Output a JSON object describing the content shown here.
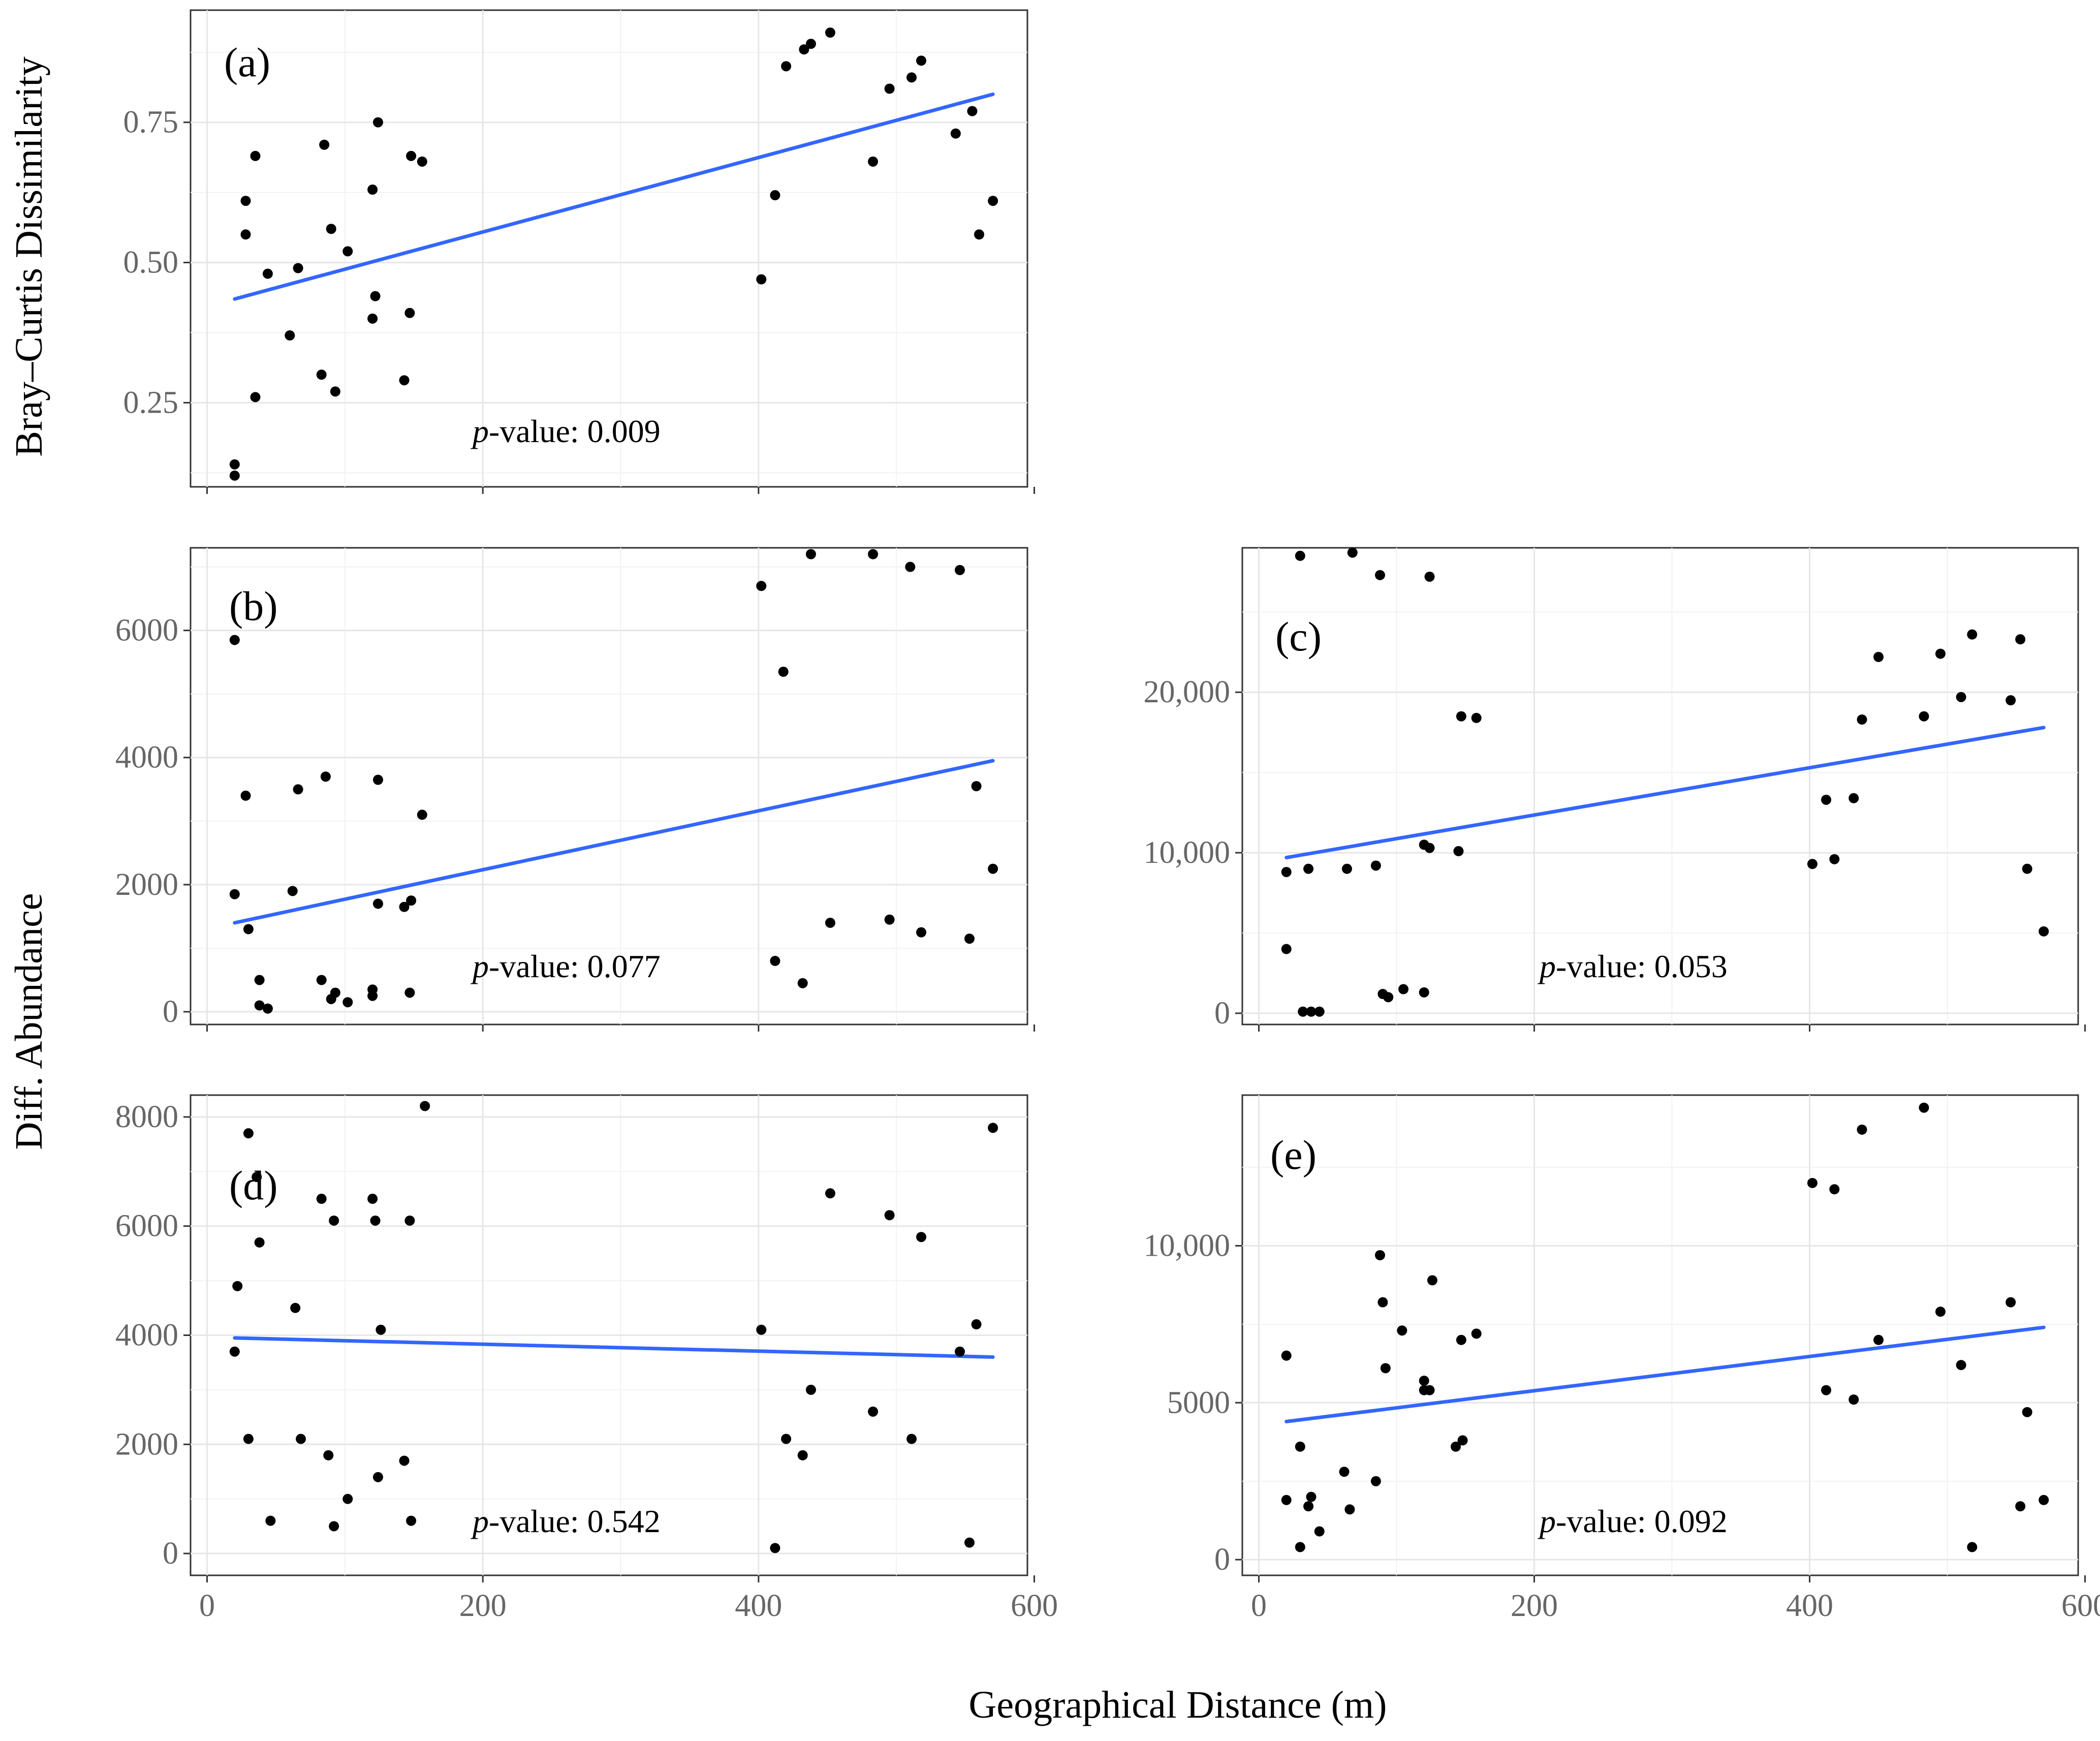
{
  "figure": {
    "xlabel": "Geographical Distance (m)",
    "ylabel_top": "Bray–Curtis Dissimilarity",
    "ylabel_bottom": "Diff. Abundance",
    "line_color": "#3366FF",
    "point_color": "#000000"
  },
  "chart_data": [
    {
      "id": "a",
      "type": "scatter",
      "panel_label": "(a)",
      "p_prefix": "p",
      "p_text": "-value: 0.009",
      "xlabel": "Geographical Distance (m)",
      "ylabel": "Bray–Curtis Dissimilarity",
      "xlim": [
        -12,
        595
      ],
      "ylim": [
        0.1,
        0.95
      ],
      "xticks": [
        0,
        200,
        400,
        600
      ],
      "xtick_labels": [
        "",
        "",
        "",
        ""
      ],
      "yticks": [
        0.25,
        0.5,
        0.75
      ],
      "ytick_labels": [
        "0.25",
        "0.50",
        "0.75"
      ],
      "trend": {
        "x0": 20,
        "y0": 0.435,
        "x1": 570,
        "y1": 0.8
      },
      "points": [
        [
          20,
          0.12
        ],
        [
          20,
          0.14
        ],
        [
          28,
          0.61
        ],
        [
          28,
          0.55
        ],
        [
          35,
          0.69
        ],
        [
          35,
          0.26
        ],
        [
          44,
          0.48
        ],
        [
          60,
          0.37
        ],
        [
          66,
          0.49
        ],
        [
          83,
          0.3
        ],
        [
          85,
          0.71
        ],
        [
          90,
          0.56
        ],
        [
          93,
          0.27
        ],
        [
          102,
          0.52
        ],
        [
          120,
          0.63
        ],
        [
          120,
          0.4
        ],
        [
          122,
          0.44
        ],
        [
          124,
          0.75
        ],
        [
          143,
          0.29
        ],
        [
          147,
          0.41
        ],
        [
          148,
          0.69
        ],
        [
          156,
          0.68
        ],
        [
          402,
          0.47
        ],
        [
          412,
          0.62
        ],
        [
          420,
          0.85
        ],
        [
          433,
          0.88
        ],
        [
          438,
          0.89
        ],
        [
          452,
          0.91
        ],
        [
          483,
          0.68
        ],
        [
          495,
          0.81
        ],
        [
          511,
          0.83
        ],
        [
          518,
          0.86
        ],
        [
          543,
          0.73
        ],
        [
          555,
          0.77
        ],
        [
          560,
          0.55
        ],
        [
          570,
          0.61
        ]
      ]
    },
    {
      "id": "b",
      "type": "scatter",
      "panel_label": "(b)",
      "p_prefix": "p",
      "p_text": "-value: 0.077",
      "xlabel": "Geographical Distance (m)",
      "ylabel": "Diff. Abundance",
      "xlim": [
        -12,
        595
      ],
      "ylim": [
        -200,
        7300
      ],
      "xticks": [
        0,
        200,
        400,
        600
      ],
      "xtick_labels": [
        "",
        "",
        "",
        ""
      ],
      "yticks": [
        0,
        2000,
        4000,
        6000
      ],
      "ytick_labels": [
        "0",
        "2000",
        "4000",
        "6000"
      ],
      "trend": {
        "x0": 20,
        "y0": 1400,
        "x1": 570,
        "y1": 3950
      },
      "points": [
        [
          20,
          5850
        ],
        [
          20,
          1850
        ],
        [
          28,
          3400
        ],
        [
          30,
          1300
        ],
        [
          38,
          500
        ],
        [
          38,
          100
        ],
        [
          44,
          50
        ],
        [
          62,
          1900
        ],
        [
          66,
          3500
        ],
        [
          83,
          500
        ],
        [
          86,
          3700
        ],
        [
          90,
          200
        ],
        [
          93,
          300
        ],
        [
          102,
          150
        ],
        [
          120,
          250
        ],
        [
          120,
          350
        ],
        [
          124,
          3650
        ],
        [
          124,
          1700
        ],
        [
          143,
          1650
        ],
        [
          147,
          300
        ],
        [
          148,
          1750
        ],
        [
          156,
          3100
        ],
        [
          402,
          6700
        ],
        [
          412,
          800
        ],
        [
          418,
          5350
        ],
        [
          432,
          450
        ],
        [
          438,
          7200
        ],
        [
          452,
          1400
        ],
        [
          483,
          7200
        ],
        [
          495,
          1450
        ],
        [
          510,
          7000
        ],
        [
          518,
          1250
        ],
        [
          546,
          6950
        ],
        [
          553,
          1150
        ],
        [
          558,
          3550
        ],
        [
          570,
          2250
        ]
      ]
    },
    {
      "id": "c",
      "type": "scatter",
      "panel_label": "(c)",
      "p_prefix": "p",
      "p_text": "-value: 0.053",
      "xlabel": "Geographical Distance (m)",
      "ylabel": "Diff. Abundance",
      "xlim": [
        -12,
        595
      ],
      "ylim": [
        -700,
        29000
      ],
      "xticks": [
        0,
        200,
        400,
        600
      ],
      "xtick_labels": [
        "",
        "",
        "",
        ""
      ],
      "yticks": [
        0,
        10000,
        20000
      ],
      "ytick_labels": [
        "0",
        "10,000",
        "20,000"
      ],
      "trend": {
        "x0": 20,
        "y0": 9700,
        "x1": 570,
        "y1": 17800
      },
      "points": [
        [
          20,
          4000
        ],
        [
          20,
          8800
        ],
        [
          30,
          28500
        ],
        [
          32,
          100
        ],
        [
          36,
          9000
        ],
        [
          38,
          100
        ],
        [
          44,
          100
        ],
        [
          64,
          9000
        ],
        [
          68,
          28700
        ],
        [
          85,
          9200
        ],
        [
          88,
          27300
        ],
        [
          90,
          1200
        ],
        [
          94,
          1000
        ],
        [
          105,
          1500
        ],
        [
          120,
          1300
        ],
        [
          120,
          10500
        ],
        [
          124,
          27200
        ],
        [
          124,
          10300
        ],
        [
          145,
          10100
        ],
        [
          147,
          18500
        ],
        [
          158,
          18400
        ],
        [
          402,
          9300
        ],
        [
          412,
          13300
        ],
        [
          418,
          9600
        ],
        [
          432,
          13400
        ],
        [
          438,
          18300
        ],
        [
          450,
          22200
        ],
        [
          483,
          18500
        ],
        [
          495,
          22400
        ],
        [
          510,
          19700
        ],
        [
          518,
          23600
        ],
        [
          546,
          19500
        ],
        [
          553,
          23300
        ],
        [
          558,
          9000
        ],
        [
          570,
          5100
        ]
      ]
    },
    {
      "id": "d",
      "type": "scatter",
      "panel_label": "(d)",
      "p_prefix": "p",
      "p_text": "-value: 0.542",
      "xlabel": "Geographical Distance (m)",
      "ylabel": "Diff. Abundance",
      "xlim": [
        -12,
        595
      ],
      "ylim": [
        -400,
        8400
      ],
      "xticks": [
        0,
        200,
        400,
        600
      ],
      "xtick_labels": [
        "0",
        "200",
        "400",
        "600"
      ],
      "yticks": [
        0,
        2000,
        4000,
        6000,
        8000
      ],
      "ytick_labels": [
        "0",
        "2000",
        "4000",
        "6000",
        "8000"
      ],
      "trend": {
        "x0": 20,
        "y0": 3950,
        "x1": 570,
        "y1": 3600
      },
      "points": [
        [
          20,
          3700
        ],
        [
          22,
          4900
        ],
        [
          30,
          7700
        ],
        [
          30,
          2100
        ],
        [
          36,
          6900
        ],
        [
          38,
          5700
        ],
        [
          46,
          600
        ],
        [
          64,
          4500
        ],
        [
          68,
          2100
        ],
        [
          83,
          6500
        ],
        [
          88,
          1800
        ],
        [
          92,
          500
        ],
        [
          92,
          6100
        ],
        [
          102,
          1000
        ],
        [
          120,
          6500
        ],
        [
          122,
          6100
        ],
        [
          124,
          1400
        ],
        [
          126,
          4100
        ],
        [
          143,
          1700
        ],
        [
          147,
          6100
        ],
        [
          148,
          600
        ],
        [
          158,
          8200
        ],
        [
          402,
          4100
        ],
        [
          412,
          100
        ],
        [
          420,
          2100
        ],
        [
          432,
          1800
        ],
        [
          438,
          3000
        ],
        [
          452,
          6600
        ],
        [
          483,
          2600
        ],
        [
          495,
          6200
        ],
        [
          511,
          2100
        ],
        [
          518,
          5800
        ],
        [
          546,
          3700
        ],
        [
          553,
          200
        ],
        [
          558,
          4200
        ],
        [
          570,
          7800
        ]
      ]
    },
    {
      "id": "e",
      "type": "scatter",
      "panel_label": "(e)",
      "p_prefix": "p",
      "p_text": "-value: 0.092",
      "xlabel": "Geographical Distance (m)",
      "ylabel": "Diff. Abundance",
      "xlim": [
        -12,
        595
      ],
      "ylim": [
        -500,
        14800
      ],
      "xticks": [
        0,
        200,
        400,
        600
      ],
      "xtick_labels": [
        "0",
        "200",
        "400",
        "600"
      ],
      "yticks": [
        0,
        5000,
        10000
      ],
      "ytick_labels": [
        "0",
        "5000",
        "10,000"
      ],
      "trend": {
        "x0": 20,
        "y0": 4400,
        "x1": 570,
        "y1": 7400
      },
      "points": [
        [
          20,
          6500
        ],
        [
          20,
          1900
        ],
        [
          30,
          3600
        ],
        [
          30,
          400
        ],
        [
          36,
          1700
        ],
        [
          38,
          2000
        ],
        [
          44,
          900
        ],
        [
          62,
          2800
        ],
        [
          66,
          1600
        ],
        [
          85,
          2500
        ],
        [
          88,
          9700
        ],
        [
          90,
          8200
        ],
        [
          92,
          6100
        ],
        [
          104,
          7300
        ],
        [
          120,
          5700
        ],
        [
          120,
          5400
        ],
        [
          124,
          5400
        ],
        [
          126,
          8900
        ],
        [
          143,
          3600
        ],
        [
          147,
          7000
        ],
        [
          148,
          3800
        ],
        [
          158,
          7200
        ],
        [
          402,
          12000
        ],
        [
          412,
          5400
        ],
        [
          418,
          11800
        ],
        [
          432,
          5100
        ],
        [
          438,
          13700
        ],
        [
          450,
          7000
        ],
        [
          483,
          14400
        ],
        [
          495,
          7900
        ],
        [
          510,
          6200
        ],
        [
          518,
          400
        ],
        [
          546,
          8200
        ],
        [
          553,
          1700
        ],
        [
          558,
          4700
        ],
        [
          570,
          1900
        ]
      ]
    }
  ]
}
